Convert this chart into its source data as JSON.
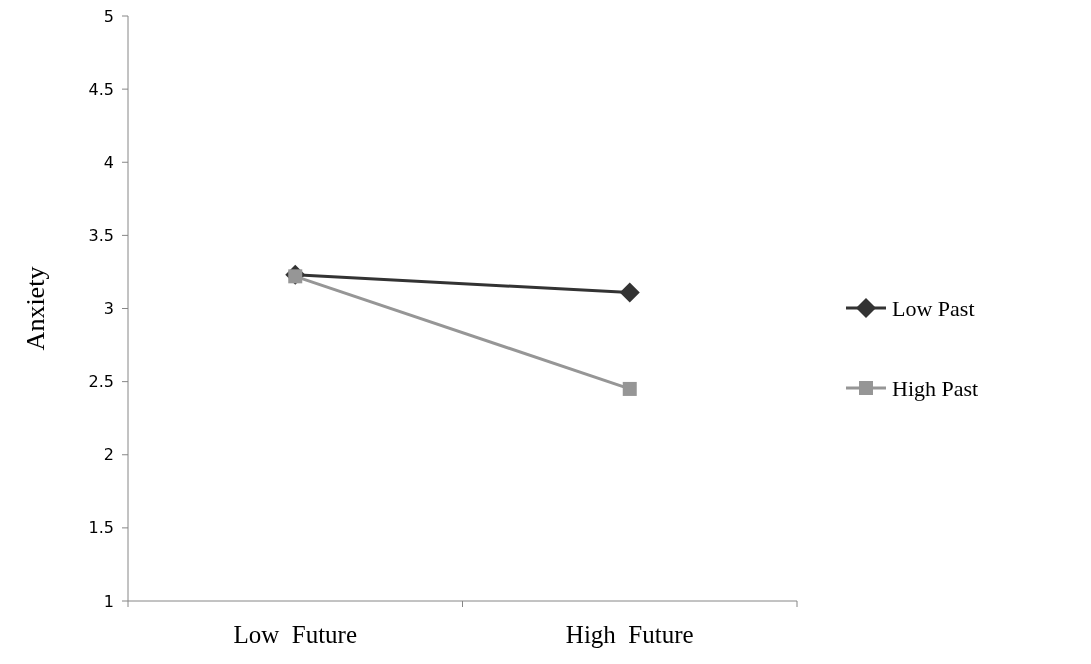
{
  "chart_data": {
    "type": "line",
    "ylabel": "Anxiety",
    "categories": [
      "Low  Future",
      "High  Future"
    ],
    "series": [
      {
        "name": "Low Past",
        "color": "#333333",
        "values": [
          3.23,
          3.11
        ],
        "marker": "diamond"
      },
      {
        "name": "High Past",
        "color": "#969696",
        "values": [
          3.22,
          2.45
        ],
        "marker": "square"
      }
    ],
    "ylim": [
      1,
      5
    ],
    "yticks": [
      1,
      1.5,
      2,
      2.5,
      3,
      3.5,
      4,
      4.5,
      5
    ],
    "legend": "right"
  }
}
